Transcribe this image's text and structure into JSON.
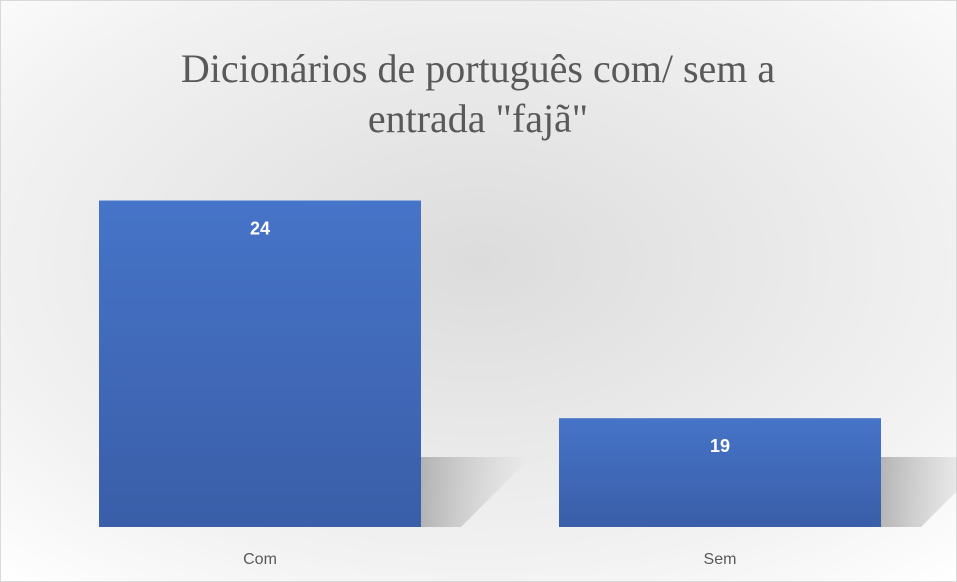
{
  "chart_data": {
    "type": "bar",
    "title": "Dicionários de português com/ sem a entrada \"fajã\"",
    "categories": [
      "Com",
      "Sem"
    ],
    "values": [
      24,
      19
    ],
    "color": "#4472c4",
    "ylim": [
      16.5,
      25
    ],
    "grid": false
  }
}
